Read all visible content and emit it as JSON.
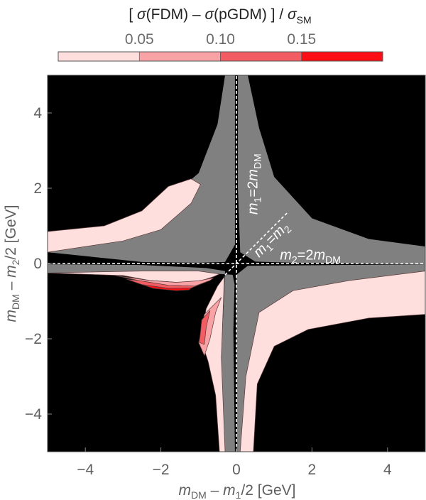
{
  "chart_data": {
    "type": "heatmap",
    "colorbar": {
      "title_parts": [
        "[ ",
        "σ",
        "(FDM) – ",
        "σ",
        "(pGDM) ] / ",
        "σ",
        "SM"
      ],
      "ticks": [
        0.05,
        0.1,
        0.15
      ],
      "tick_labels": [
        "0.05",
        "0.10",
        "0.15"
      ],
      "range": [
        0,
        0.2
      ],
      "bins": [
        {
          "from": 0.0,
          "to": 0.05,
          "color": "#ffdede"
        },
        {
          "from": 0.05,
          "to": 0.1,
          "color": "#f9a2a6"
        },
        {
          "from": 0.1,
          "to": 0.15,
          "color": "#f25c62"
        },
        {
          "from": 0.15,
          "to": 0.2,
          "color": "#fd0d14"
        }
      ]
    },
    "xlim": [
      -5,
      5
    ],
    "ylim": [
      -5,
      5
    ],
    "xticks": [
      -4,
      -2,
      0,
      2,
      4
    ],
    "yticks": [
      -4,
      -2,
      0,
      2,
      4
    ],
    "xtick_labels": [
      "−4",
      "−2",
      "0",
      "2",
      "4"
    ],
    "ytick_labels": [
      "−4",
      "−2",
      "0",
      "2",
      "4"
    ],
    "xlabel_parts": [
      "m",
      "DM",
      " – ",
      "m",
      "1",
      "/2 [GeV]"
    ],
    "ylabel_parts": [
      "m",
      "DM",
      " – ",
      "m",
      "2",
      "/2 [GeV]"
    ],
    "background_color": "#000000",
    "allowed_region_color": "#808080",
    "regions": [
      {
        "id": "gray-upper-right-arm",
        "color": "#808080",
        "points": [
          [
            0.04,
            5
          ],
          [
            0.3,
            5
          ],
          [
            0.6,
            3.6
          ],
          [
            1.0,
            2.3
          ],
          [
            2.0,
            1.2
          ],
          [
            3.5,
            0.65
          ],
          [
            5,
            0.45
          ],
          [
            5,
            -0.02
          ],
          [
            1.5,
            0.02
          ],
          [
            0.5,
            0.05
          ],
          [
            0.1,
            0.3
          ],
          [
            0.04,
            2
          ]
        ]
      },
      {
        "id": "gray-upper-left-arm",
        "color": "#808080",
        "points": [
          [
            -0.04,
            5
          ],
          [
            -0.3,
            5
          ],
          [
            -0.5,
            3.7
          ],
          [
            -1.0,
            2.4
          ],
          [
            -2.0,
            1.55
          ],
          [
            -3.5,
            1.0
          ],
          [
            -5,
            0.85
          ],
          [
            -5,
            0.3
          ],
          [
            -2.5,
            0.04
          ],
          [
            -1.0,
            0.02
          ],
          [
            -0.3,
            0.04
          ],
          [
            -0.04,
            0.5
          ]
        ]
      },
      {
        "id": "pink-upper-left-band",
        "color": "#ffdede",
        "points": [
          [
            -5,
            0.3
          ],
          [
            -3.0,
            0.6
          ],
          [
            -2.0,
            0.9
          ],
          [
            -1.2,
            1.6
          ],
          [
            -0.95,
            2.1
          ],
          [
            -1.2,
            2.25
          ],
          [
            -1.8,
            2.05
          ],
          [
            -2.5,
            1.4
          ],
          [
            -3.5,
            1.0
          ],
          [
            -5,
            0.85
          ]
        ]
      },
      {
        "id": "gray-lower-right-arm",
        "color": "#808080",
        "points": [
          [
            5,
            -0.02
          ],
          [
            5,
            -0.2
          ],
          [
            3.0,
            -0.45
          ],
          [
            1.5,
            -0.72
          ],
          [
            0.6,
            -1.3
          ],
          [
            0.25,
            -3.0
          ],
          [
            0.1,
            -5
          ],
          [
            0.02,
            -5
          ],
          [
            0,
            -0.3
          ],
          [
            0.3,
            -0.06
          ]
        ]
      },
      {
        "id": "gray-lower-left-arm",
        "color": "#808080",
        "points": [
          [
            -5,
            -0.02
          ],
          [
            -5,
            -0.25
          ],
          [
            -2.5,
            -0.2
          ],
          [
            -1.0,
            -0.2
          ],
          [
            -0.45,
            -0.28
          ],
          [
            -0.1,
            -0.3
          ],
          [
            -0.05,
            -0.55
          ],
          [
            -0.08,
            -1.8
          ],
          [
            -0.04,
            -5
          ],
          [
            -0.3,
            -5
          ],
          [
            -0.4,
            -2.5
          ],
          [
            -0.3,
            -0.2
          ],
          [
            -0.8,
            -0.12
          ],
          [
            -2.5,
            -0.04
          ]
        ]
      },
      {
        "id": "pink-lower-left-band",
        "color": "#ffdede",
        "points": [
          [
            -5,
            -0.25
          ],
          [
            -3.0,
            -0.32
          ],
          [
            -2.3,
            -0.45
          ],
          [
            -1.6,
            -0.5
          ],
          [
            -1.0,
            -0.48
          ],
          [
            -0.6,
            -0.35
          ],
          [
            -0.45,
            -0.28
          ],
          [
            -1.0,
            -0.2
          ],
          [
            -2.5,
            -0.2
          ]
        ]
      },
      {
        "id": "red-lower-left-band-1",
        "color": "#f9a2a6",
        "points": [
          [
            -3.2,
            -0.32
          ],
          [
            -2.6,
            -0.45
          ],
          [
            -1.8,
            -0.58
          ],
          [
            -1.1,
            -0.6
          ],
          [
            -0.7,
            -0.45
          ],
          [
            -0.6,
            -0.38
          ],
          [
            -1.0,
            -0.46
          ],
          [
            -1.6,
            -0.5
          ],
          [
            -2.3,
            -0.45
          ]
        ]
      },
      {
        "id": "red-lower-left-band-2",
        "color": "#f25c62",
        "points": [
          [
            -2.9,
            -0.42
          ],
          [
            -2.5,
            -0.56
          ],
          [
            -1.8,
            -0.66
          ],
          [
            -1.2,
            -0.65
          ],
          [
            -0.75,
            -0.47
          ],
          [
            -1.1,
            -0.6
          ],
          [
            -1.8,
            -0.58
          ],
          [
            -2.6,
            -0.45
          ]
        ]
      },
      {
        "id": "red-lower-left-band-3",
        "color": "#fd0d14",
        "points": [
          [
            -2.5,
            -0.56
          ],
          [
            -2.2,
            -0.66
          ],
          [
            -1.6,
            -0.72
          ],
          [
            -1.25,
            -0.7
          ],
          [
            -1.2,
            -0.65
          ],
          [
            -1.8,
            -0.66
          ]
        ]
      },
      {
        "id": "pink-lower-right-band",
        "color": "#ffdede",
        "points": [
          [
            5,
            -0.2
          ],
          [
            3.0,
            -0.45
          ],
          [
            1.5,
            -0.72
          ],
          [
            0.6,
            -1.3
          ],
          [
            0.25,
            -3.0
          ],
          [
            0.1,
            -5
          ],
          [
            0.45,
            -5
          ],
          [
            0.55,
            -3.2
          ],
          [
            1.0,
            -2.2
          ],
          [
            1.9,
            -1.75
          ],
          [
            3.5,
            -1.45
          ],
          [
            5,
            -1.35
          ]
        ]
      },
      {
        "id": "pink-lower-spike",
        "color": "#ffdede",
        "points": [
          [
            -0.3,
            -5
          ],
          [
            -0.4,
            -2.5
          ],
          [
            -0.32,
            -0.35
          ],
          [
            -0.5,
            -0.6
          ],
          [
            -0.8,
            -1.2
          ],
          [
            -0.95,
            -2.0
          ],
          [
            -0.75,
            -2.6
          ],
          [
            -0.55,
            -3.5
          ],
          [
            -0.45,
            -5
          ]
        ]
      },
      {
        "id": "red-lower-spike-1",
        "color": "#f9a2a6",
        "points": [
          [
            -0.4,
            -0.9
          ],
          [
            -0.85,
            -1.35
          ],
          [
            -1.0,
            -2.1
          ],
          [
            -0.85,
            -2.45
          ],
          [
            -0.7,
            -2.0
          ],
          [
            -0.55,
            -1.3
          ]
        ]
      },
      {
        "id": "red-lower-spike-2",
        "color": "#f25c62",
        "points": [
          [
            -0.7,
            -1.25
          ],
          [
            -0.92,
            -1.5
          ],
          [
            -0.98,
            -2.1
          ],
          [
            -0.85,
            -2.15
          ],
          [
            -0.8,
            -1.7
          ]
        ]
      }
    ],
    "dashed_lines": [
      {
        "id": "m1-equals-2mDM",
        "points": [
          [
            0,
            -5
          ],
          [
            0,
            5
          ]
        ]
      },
      {
        "id": "m2-equals-2mDM",
        "points": [
          [
            -5,
            0
          ],
          [
            5,
            0
          ]
        ]
      },
      {
        "id": "m1-equals-m2",
        "points": [
          [
            -0.3,
            -0.3
          ],
          [
            1.35,
            1.35
          ]
        ]
      }
    ],
    "annotations": [
      {
        "id": "annot-m1-2mdm",
        "parts": [
          "m",
          "1",
          "=2",
          "m",
          "DM"
        ],
        "x": 0.55,
        "y": 1.3,
        "rotate": -90
      },
      {
        "id": "annot-m1-m2",
        "parts": [
          "m",
          "1",
          "=",
          "m",
          "2"
        ],
        "x": 0.6,
        "y": 0.15,
        "rotate": -45
      },
      {
        "id": "annot-m2-2mdm",
        "parts": [
          "m",
          "2",
          "=2",
          "m",
          "DM"
        ],
        "x": 1.15,
        "y": 0.1,
        "rotate": 0
      }
    ]
  }
}
